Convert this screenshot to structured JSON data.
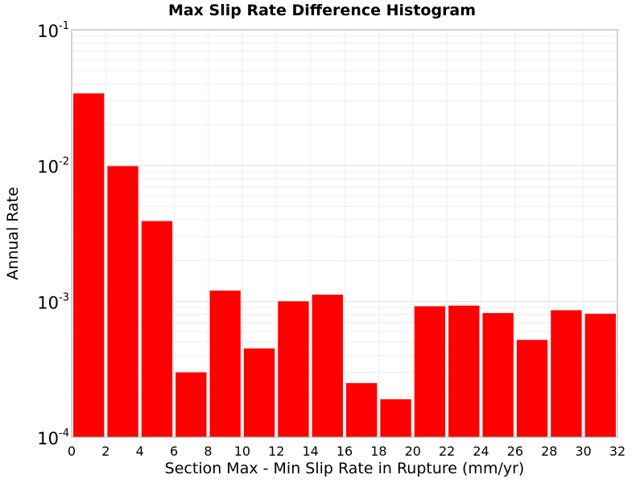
{
  "chart_data": {
    "type": "bar",
    "title": "Max Slip Rate Difference Histogram",
    "xlabel": "Section Max - Min Slip Rate in Rupture (mm/yr)",
    "ylabel": "Annual Rate",
    "y_scale": "log",
    "ylim": [
      0.0001,
      0.1
    ],
    "xlim": [
      0,
      32
    ],
    "bin_width": 2,
    "bar_color": "#ff0000",
    "grid": true,
    "x_ticks": [
      "0",
      "2",
      "4",
      "6",
      "8",
      "10",
      "12",
      "14",
      "16",
      "18",
      "20",
      "22",
      "24",
      "26",
      "28",
      "30",
      "32"
    ],
    "y_ticks": [
      {
        "value": 0.1,
        "base": "10",
        "exp": "-1"
      },
      {
        "value": 0.01,
        "base": "10",
        "exp": "-2"
      },
      {
        "value": 0.001,
        "base": "10",
        "exp": "-3"
      },
      {
        "value": 0.0001,
        "base": "10",
        "exp": "-4"
      }
    ],
    "bars": [
      {
        "x0": 0,
        "x1": 2,
        "value": 0.034
      },
      {
        "x0": 2,
        "x1": 4,
        "value": 0.0099
      },
      {
        "x0": 4,
        "x1": 6,
        "value": 0.0039
      },
      {
        "x0": 6,
        "x1": 8,
        "value": 0.0003
      },
      {
        "x0": 8,
        "x1": 10,
        "value": 0.0012
      },
      {
        "x0": 10,
        "x1": 12,
        "value": 0.00045
      },
      {
        "x0": 12,
        "x1": 14,
        "value": 0.001
      },
      {
        "x0": 14,
        "x1": 16,
        "value": 0.00112
      },
      {
        "x0": 16,
        "x1": 18,
        "value": 0.00025
      },
      {
        "x0": 18,
        "x1": 20,
        "value": 0.00019
      },
      {
        "x0": 20,
        "x1": 22,
        "value": 0.00092
      },
      {
        "x0": 22,
        "x1": 24,
        "value": 0.00093
      },
      {
        "x0": 24,
        "x1": 26,
        "value": 0.00082
      },
      {
        "x0": 26,
        "x1": 28,
        "value": 0.00052
      },
      {
        "x0": 28,
        "x1": 30,
        "value": 0.00086
      },
      {
        "x0": 30,
        "x1": 32,
        "value": 0.00081
      }
    ]
  }
}
